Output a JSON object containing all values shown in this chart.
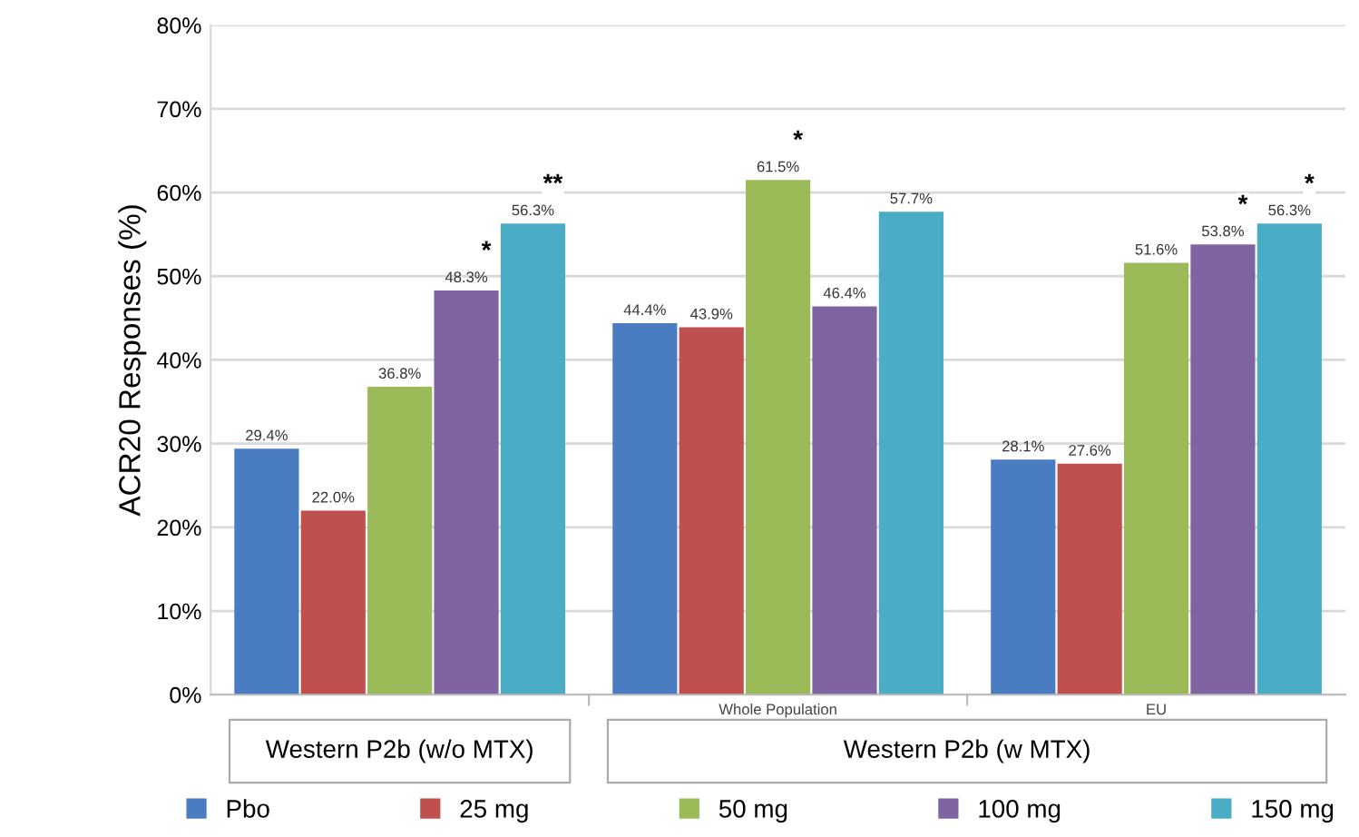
{
  "chart_data": {
    "type": "bar",
    "categories": [
      null,
      "Whole Population",
      "EU"
    ],
    "series": [
      {
        "name": "Pbo",
        "color": "#4a7cc1",
        "values": [
          29.4,
          44.4,
          28.1
        ],
        "value_labels": [
          "29.4%",
          "44.4%",
          "28.1%"
        ]
      },
      {
        "name": "25 mg",
        "color": "#c0504d",
        "values": [
          22.0,
          43.9,
          27.6
        ],
        "value_labels": [
          "22.0%",
          "43.9%",
          "27.6%"
        ]
      },
      {
        "name": "50 mg",
        "color": "#9bbb59",
        "values": [
          36.8,
          61.5,
          51.6
        ],
        "value_labels": [
          "36.8%",
          "61.5%",
          "51.6%"
        ]
      },
      {
        "name": "100 mg",
        "color": "#8064a2",
        "values": [
          48.3,
          46.4,
          53.8
        ],
        "value_labels": [
          "48.3%",
          "46.4%",
          "53.8%"
        ]
      },
      {
        "name": "150 mg",
        "color": "#4bacc6",
        "values": [
          56.3,
          57.7,
          56.3
        ],
        "value_labels": [
          "56.3%",
          "57.7%",
          "56.3%"
        ]
      }
    ],
    "ylabel": "ACR20 Responses (%)",
    "ylim": [
      0,
      80
    ],
    "yticks": [
      {
        "value": 0,
        "label": "0%"
      },
      {
        "value": 10,
        "label": "10%"
      },
      {
        "value": 20,
        "label": "20%"
      },
      {
        "value": 30,
        "label": "30%"
      },
      {
        "value": 40,
        "label": "40%"
      },
      {
        "value": 50,
        "label": "50%"
      },
      {
        "value": 60,
        "label": "60%"
      },
      {
        "value": 70,
        "label": "70%"
      },
      {
        "value": 80,
        "label": "80%"
      }
    ],
    "grid": "y",
    "legend": "bottom",
    "annotations": [
      "Western P2b (w/o MTX)",
      "Western P2b (w MTX)",
      {
        "text": "*",
        "y": 48.3
      },
      {
        "text": "**",
        "y": 56.3
      },
      {
        "text": "*",
        "x": "Whole Population",
        "y": 61.5
      },
      {
        "text": "*",
        "y": 53.8
      },
      {
        "text": "*",
        "y": 56.3
      }
    ]
  }
}
